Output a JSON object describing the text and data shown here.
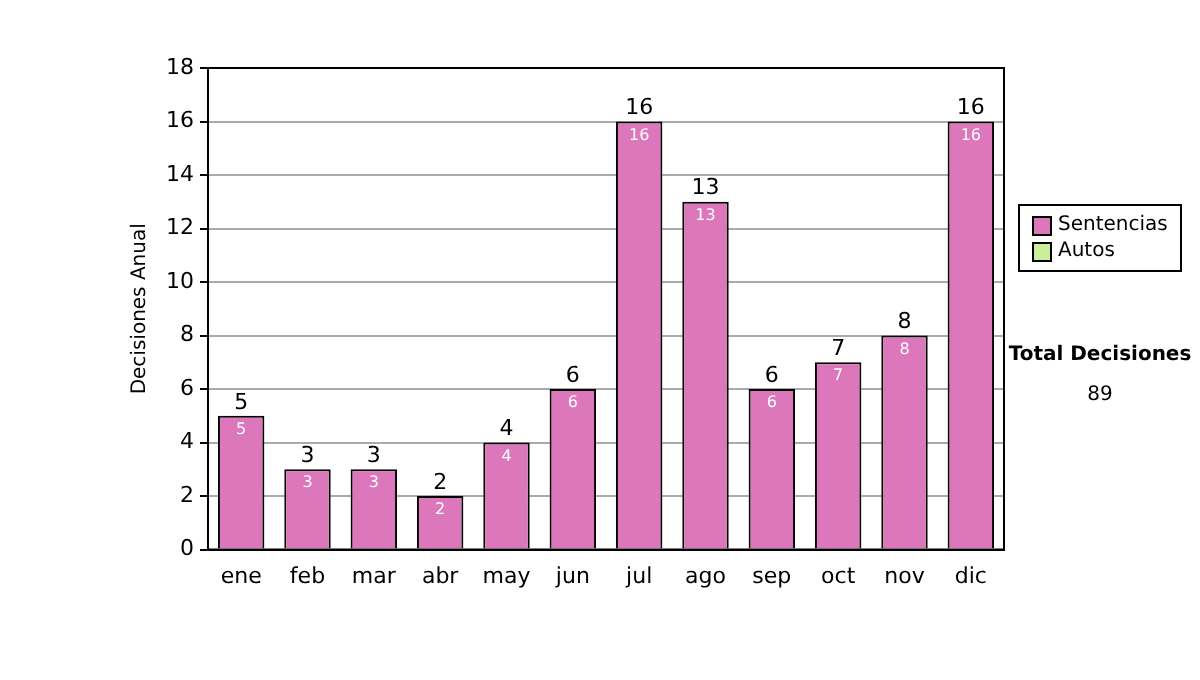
{
  "chart_data": {
    "type": "bar",
    "ylabel": "Decisiones Anual",
    "categories": [
      "ene",
      "feb",
      "mar",
      "abr",
      "may",
      "jun",
      "jul",
      "ago",
      "sep",
      "oct",
      "nov",
      "dic"
    ],
    "series": [
      {
        "name": "Sentencias",
        "color": "#dd77bb",
        "values": [
          5,
          3,
          3,
          2,
          4,
          6,
          16,
          13,
          6,
          7,
          8,
          16
        ]
      },
      {
        "name": "Autos",
        "color": "#ccee99",
        "values": [
          null,
          null,
          null,
          null,
          null,
          null,
          null,
          null,
          null,
          null,
          null,
          null
        ]
      }
    ],
    "stacked": true,
    "data_labels": true,
    "totals": [
      "5",
      "3",
      "3",
      "2",
      "4",
      "6",
      "16",
      "13",
      "6",
      "7",
      "8",
      "16"
    ],
    "ylim": [
      0,
      18
    ],
    "yticks": [
      0,
      2,
      4,
      6,
      8,
      10,
      12,
      14,
      16,
      18
    ],
    "grid": "y",
    "legend": "right",
    "annotations": [
      "Total Decisiones",
      "89"
    ]
  }
}
